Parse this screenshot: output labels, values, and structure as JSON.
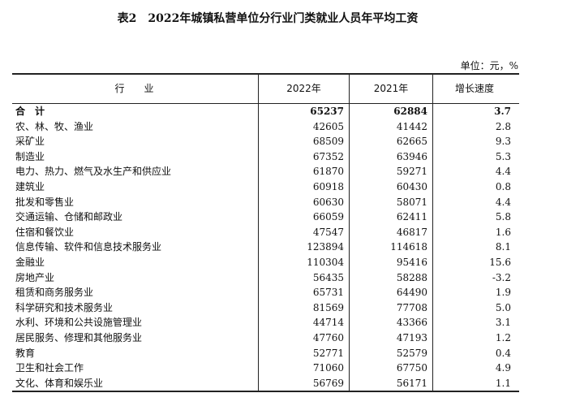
{
  "title": "表2　2022年城镇私营单位分行业门类就业人员年平均工资",
  "unit": "单位：元，%",
  "table": {
    "header": [
      "行　　业",
      "2022年",
      "2021年",
      "增长速度"
    ],
    "rows": [
      [
        "合　计",
        "65237",
        "62884",
        "3.7"
      ],
      [
        "农、林、牧、渔业",
        "42605",
        "41442",
        "2.8"
      ],
      [
        "采矿业",
        "68509",
        "62665",
        "9.3"
      ],
      [
        "制造业",
        "67352",
        "63946",
        "5.3"
      ],
      [
        "电力、热力、燃气及水生产和供应业",
        "61870",
        "59271",
        "4.4"
      ],
      [
        "建筑业",
        "60918",
        "60430",
        "0.8"
      ],
      [
        "批发和零售业",
        "60630",
        "58071",
        "4.4"
      ],
      [
        "交通运输、仓储和邮政业",
        "66059",
        "62411",
        "5.8"
      ],
      [
        "住宿和餐饮业",
        "47547",
        "46817",
        "1.6"
      ],
      [
        "信息传输、软件和信息技术服务业",
        "123894",
        "114618",
        "8.1"
      ],
      [
        "金融业",
        "110304",
        "95416",
        "15.6"
      ],
      [
        "房地产业",
        "56435",
        "58288",
        "-3.2"
      ],
      [
        "租赁和商务服务业",
        "65731",
        "64490",
        "1.9"
      ],
      [
        "科学研究和技术服务业",
        "81569",
        "77708",
        "5.0"
      ],
      [
        "水利、环境和公共设施管理业",
        "44714",
        "43366",
        "3.1"
      ],
      [
        "居民服务、修理和其他服务业",
        "47760",
        "47193",
        "1.2"
      ],
      [
        "教育",
        "52771",
        "52579",
        "0.4"
      ],
      [
        "卫生和社会工作",
        "71060",
        "67750",
        "4.9"
      ],
      [
        "文化、体育和娱乐业",
        "56769",
        "56171",
        "1.1"
      ]
    ]
  }
}
